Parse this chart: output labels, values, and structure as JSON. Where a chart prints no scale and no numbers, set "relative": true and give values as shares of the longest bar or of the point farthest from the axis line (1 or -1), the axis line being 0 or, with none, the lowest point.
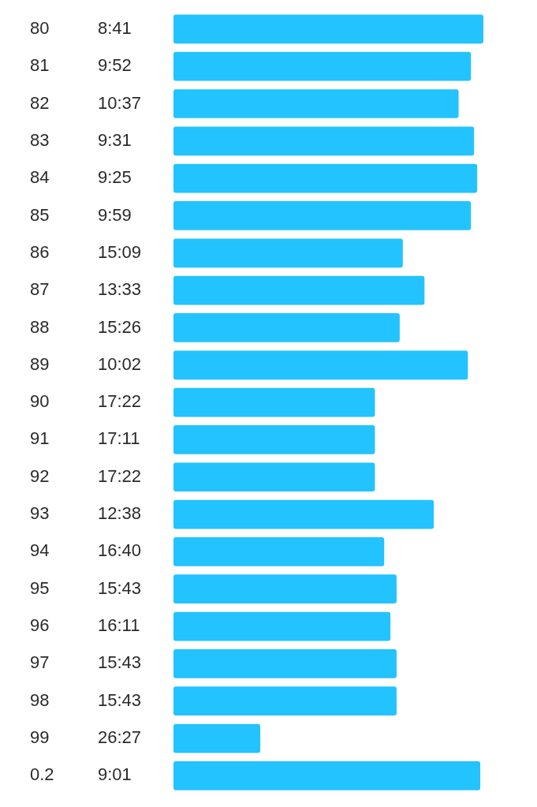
{
  "chart_data": {
    "type": "bar",
    "orientation": "horizontal",
    "relative": true,
    "categories": [
      "80",
      "81",
      "82",
      "83",
      "84",
      "85",
      "86",
      "87",
      "88",
      "89",
      "90",
      "91",
      "92",
      "93",
      "94",
      "95",
      "96",
      "97",
      "98",
      "99",
      "0.2"
    ],
    "values": [
      1,
      0.96,
      0.92,
      0.97,
      0.98,
      0.96,
      0.74,
      0.81,
      0.73,
      0.95,
      0.65,
      0.65,
      0.65,
      0.84,
      0.68,
      0.72,
      0.7,
      0.72,
      0.72,
      0.28,
      0.99
    ],
    "annotations": [
      "8:41",
      "9:52",
      "10:37",
      "9:31",
      "9:25",
      "9:59",
      "15:09",
      "13:33",
      "15:26",
      "10:02",
      "17:22",
      "17:11",
      "17:22",
      "12:38",
      "16:40",
      "15:43",
      "16:11",
      "15:43",
      "15:43",
      "26:27",
      "9:01"
    ],
    "color": "#22c3ff"
  }
}
